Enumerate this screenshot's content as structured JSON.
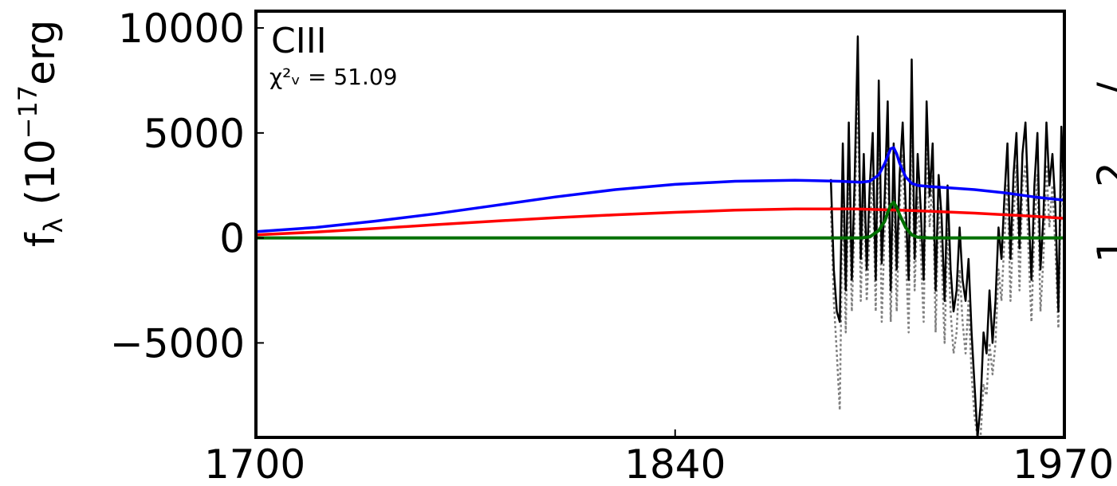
{
  "chart_data": {
    "type": "line",
    "panel_label": "CIII",
    "chi_label": "χ²ᵥ = 51.09",
    "ylabel": "f",
    "ylabel_sub": "λ",
    "ylabel_rest": " (10",
    "ylabel_sup": "−17",
    "ylabel_tail": "erg",
    "xlim": [
      1700,
      1970
    ],
    "ylim": [
      -9500,
      10800
    ],
    "xticks": [
      1700,
      1840,
      1970
    ],
    "xtick_labels": [
      "1700",
      "1840",
      "1970"
    ],
    "yticks": [
      10000,
      5000,
      0,
      -5000
    ],
    "ytick_labels": [
      "10000",
      "5000",
      "0",
      "−5000"
    ],
    "right_edge_glyphs": [
      "/",
      "2",
      "1"
    ],
    "colors": {
      "data": "#000000",
      "error": "#808080",
      "total_model": "#0000ff",
      "continuum": "#ff0000",
      "line_component": "#007000"
    },
    "series": [
      {
        "key": "data",
        "x": [
          1892,
          1893,
          1894,
          1895,
          1896,
          1897,
          1898,
          1899,
          1900,
          1901,
          1902,
          1903,
          1904,
          1905,
          1906,
          1907,
          1908,
          1909,
          1910,
          1911,
          1912,
          1913,
          1914,
          1915,
          1916,
          1917,
          1918,
          1919,
          1920,
          1921,
          1922,
          1923,
          1924,
          1925,
          1926,
          1927,
          1928,
          1929,
          1930,
          1931,
          1932,
          1933,
          1934,
          1935,
          1936,
          1937,
          1938,
          1939,
          1940,
          1941,
          1942,
          1943,
          1944,
          1945,
          1946,
          1947,
          1948,
          1949,
          1950,
          1951,
          1952,
          1953,
          1954,
          1955,
          1956,
          1957,
          1958,
          1959,
          1960,
          1961,
          1962,
          1963,
          1964,
          1965,
          1966,
          1967,
          1968,
          1969,
          1970
        ],
        "y": [
          2800,
          -1500,
          -3500,
          -4000,
          4500,
          -2500,
          5500,
          -2000,
          3000,
          9600,
          -1000,
          4000,
          -1500,
          2500,
          5000,
          -2000,
          7500,
          -1200,
          2000,
          6500,
          -2500,
          4500,
          -1500,
          3000,
          5500,
          1500,
          -2000,
          8500,
          -1000,
          4000,
          1500,
          -2000,
          6500,
          2000,
          4500,
          -2500,
          3000,
          1000,
          -3000,
          2500,
          -1500,
          -3500,
          -2500,
          500,
          -2000,
          -3000,
          -1000,
          -4500,
          -7000,
          -9500,
          -8000,
          -4500,
          -5500,
          -2500,
          -5000,
          -3000,
          500,
          -1000,
          2000,
          4500,
          -1000,
          3000,
          5000,
          -500,
          4000,
          5500,
          1500,
          -2000,
          2500,
          5000,
          -1500,
          1000,
          5500,
          2500,
          4000,
          1500,
          -3500,
          5300,
          1800
        ]
      },
      {
        "key": "error",
        "x": [
          1892,
          1893,
          1894,
          1895,
          1896,
          1897,
          1898,
          1899,
          1900,
          1901,
          1902,
          1903,
          1904,
          1905,
          1906,
          1907,
          1908,
          1909,
          1910,
          1911,
          1912,
          1913,
          1914,
          1915,
          1916,
          1917,
          1918,
          1919,
          1920,
          1921,
          1922,
          1923,
          1924,
          1925,
          1926,
          1927,
          1928,
          1929,
          1930,
          1931,
          1932,
          1933,
          1934,
          1935,
          1936,
          1937,
          1938,
          1939,
          1940,
          1941,
          1942,
          1943,
          1944,
          1945,
          1946,
          1947,
          1948,
          1949,
          1950,
          1951,
          1952,
          1953,
          1954,
          1955,
          1956,
          1957,
          1958,
          1959,
          1960,
          1961,
          1962,
          1963,
          1964,
          1965,
          1966,
          1967,
          1968,
          1969,
          1970
        ],
        "y": [
          1500,
          -3000,
          -5500,
          -8200,
          2500,
          -4500,
          3000,
          -3500,
          1000,
          7500,
          -3000,
          2500,
          -3000,
          500,
          3000,
          -3500,
          6000,
          -4000,
          500,
          4500,
          -4000,
          2500,
          -3500,
          1500,
          4000,
          -500,
          -4500,
          6500,
          -2500,
          2000,
          -500,
          -4000,
          5000,
          500,
          3000,
          -4500,
          1500,
          -1000,
          -5000,
          500,
          -3500,
          -5500,
          -4500,
          -1500,
          -4000,
          -5500,
          -3000,
          -6500,
          -8500,
          -9500,
          -9500,
          -7000,
          -7500,
          -5000,
          -6500,
          -5000,
          -1500,
          -3000,
          0,
          2500,
          -3000,
          1000,
          3500,
          -2500,
          2500,
          3500,
          -500,
          -4000,
          500,
          3000,
          -3500,
          -1000,
          3500,
          500,
          2500,
          -500,
          -4300,
          3500,
          500
        ]
      },
      {
        "key": "total_model",
        "x": [
          1700,
          1720,
          1740,
          1760,
          1780,
          1800,
          1820,
          1840,
          1860,
          1880,
          1895,
          1902,
          1905,
          1908,
          1910,
          1911,
          1912,
          1913,
          1914,
          1915,
          1917,
          1919,
          1921,
          1925,
          1930,
          1940,
          1950,
          1960,
          1970
        ],
        "y": [
          300,
          500,
          800,
          1150,
          1550,
          1950,
          2300,
          2550,
          2700,
          2750,
          2700,
          2650,
          2700,
          3000,
          3550,
          3900,
          4250,
          4300,
          4000,
          3550,
          2900,
          2600,
          2500,
          2450,
          2400,
          2300,
          2150,
          1950,
          1800
        ]
      },
      {
        "key": "continuum",
        "x": [
          1700,
          1720,
          1740,
          1760,
          1780,
          1800,
          1820,
          1840,
          1860,
          1880,
          1900,
          1920,
          1940,
          1960,
          1970
        ],
        "y": [
          150,
          280,
          450,
          630,
          800,
          960,
          1100,
          1220,
          1320,
          1380,
          1380,
          1300,
          1180,
          1030,
          930
        ]
      },
      {
        "key": "line_component",
        "x": [
          1700,
          1880,
          1902,
          1905,
          1908,
          1910,
          1911,
          1912,
          1913,
          1914,
          1915,
          1917,
          1919,
          1921,
          1925,
          1970
        ],
        "y": [
          0,
          0,
          0,
          50,
          350,
          800,
          1200,
          1550,
          1700,
          1450,
          1100,
          500,
          150,
          30,
          0,
          0
        ]
      }
    ]
  }
}
